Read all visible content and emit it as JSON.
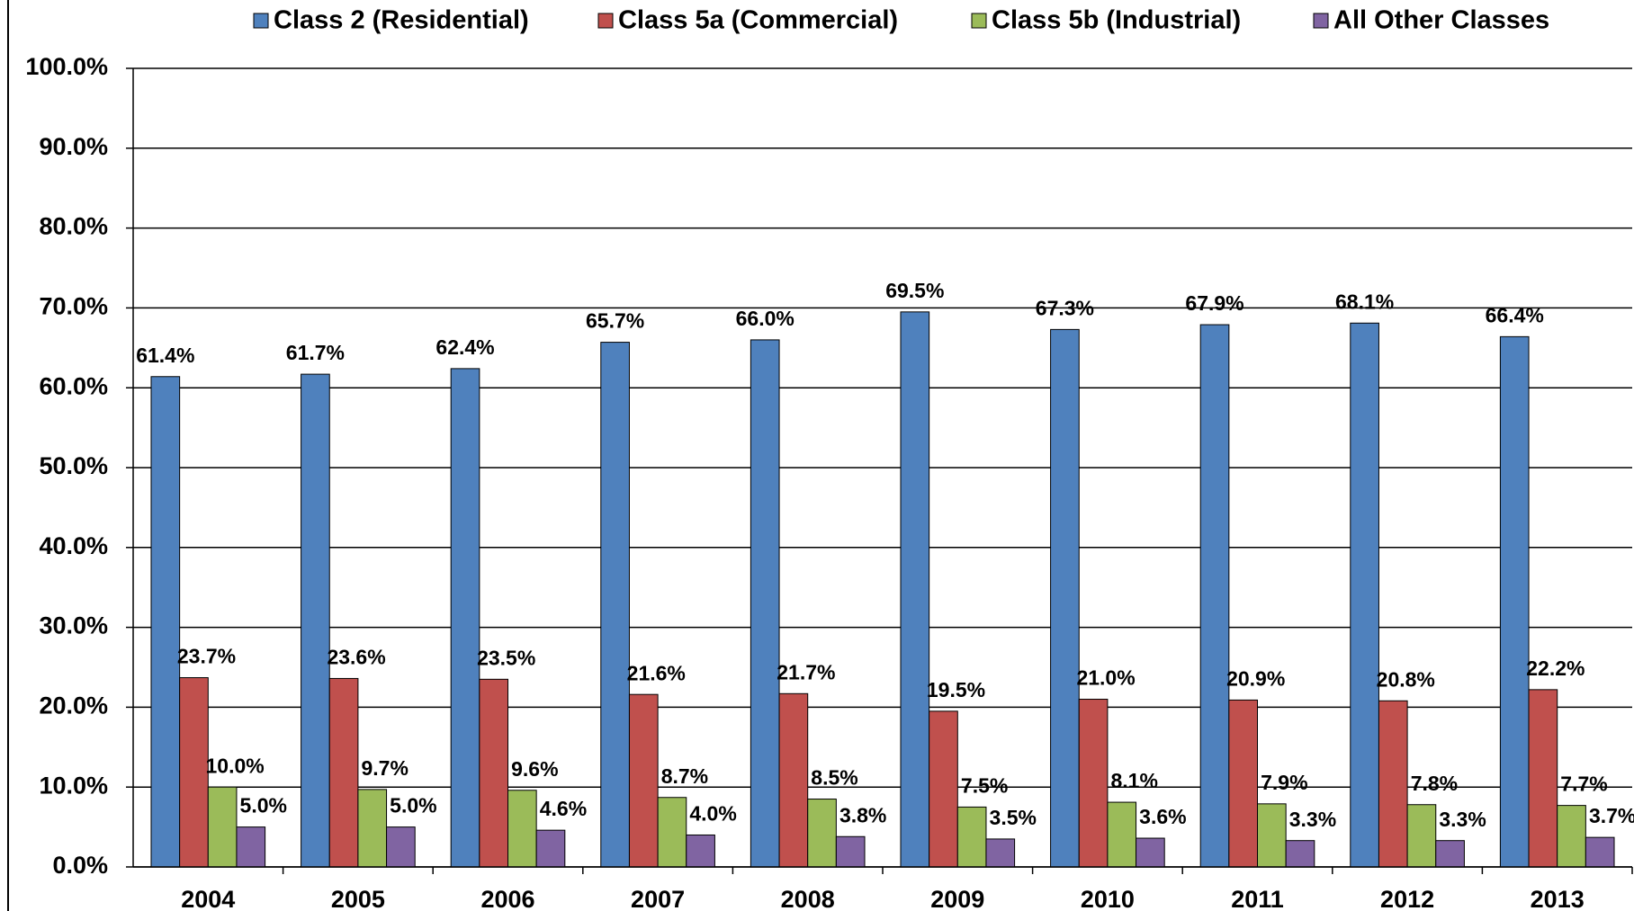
{
  "chart_data": {
    "type": "bar",
    "categories": [
      "2004",
      "2005",
      "2006",
      "2007",
      "2008",
      "2009",
      "2010",
      "2011",
      "2012",
      "2013"
    ],
    "series": [
      {
        "name": "Class 2 (Residential)",
        "color": "#4f81bd",
        "values": [
          61.4,
          61.7,
          62.4,
          65.7,
          66.0,
          69.5,
          67.3,
          67.9,
          68.1,
          66.4
        ],
        "value_labels": [
          "61.4%",
          "61.7%",
          "62.4%",
          "65.7%",
          "66.0%",
          "69.5%",
          "67.3%",
          "67.9%",
          "68.1%",
          "66.4%"
        ]
      },
      {
        "name": "Class 5a (Commercial)",
        "color": "#c0504d",
        "values": [
          23.7,
          23.6,
          23.5,
          21.6,
          21.7,
          19.5,
          21.0,
          20.9,
          20.8,
          22.2
        ],
        "value_labels": [
          "23.7%",
          "23.6%",
          "23.5%",
          "21.6%",
          "21.7%",
          "19.5%",
          "21.0%",
          "20.9%",
          "20.8%",
          "22.2%"
        ]
      },
      {
        "name": "Class 5b (Industrial)",
        "color": "#9bbb59",
        "values": [
          10.0,
          9.7,
          9.6,
          8.7,
          8.5,
          7.5,
          8.1,
          7.9,
          7.8,
          7.7
        ],
        "value_labels": [
          "10.0%",
          "9.7%",
          "9.6%",
          "8.7%",
          "8.5%",
          "7.5%",
          "8.1%",
          "7.9%",
          "7.8%",
          "7.7%"
        ]
      },
      {
        "name": "All Other Classes",
        "color": "#8064a2",
        "values": [
          5.0,
          5.0,
          4.6,
          4.0,
          3.8,
          3.5,
          3.6,
          3.3,
          3.3,
          3.7
        ],
        "value_labels": [
          "5.0%",
          "5.0%",
          "4.6%",
          "4.0%",
          "3.8%",
          "3.5%",
          "3.6%",
          "3.3%",
          "3.3%",
          "3.7%"
        ]
      }
    ],
    "ylim": [
      0,
      100
    ],
    "yticks": [
      {
        "value": 0,
        "label": "0.0%"
      },
      {
        "value": 10,
        "label": "10.0%"
      },
      {
        "value": 20,
        "label": "20.0%"
      },
      {
        "value": 30,
        "label": "30.0%"
      },
      {
        "value": 40,
        "label": "40.0%"
      },
      {
        "value": 50,
        "label": "50.0%"
      },
      {
        "value": 60,
        "label": "60.0%"
      },
      {
        "value": 70,
        "label": "70.0%"
      },
      {
        "value": 80,
        "label": "80.0%"
      },
      {
        "value": 90,
        "label": "90.0%"
      },
      {
        "value": 100,
        "label": "100.0%"
      }
    ],
    "grid": true,
    "legend": "top"
  }
}
